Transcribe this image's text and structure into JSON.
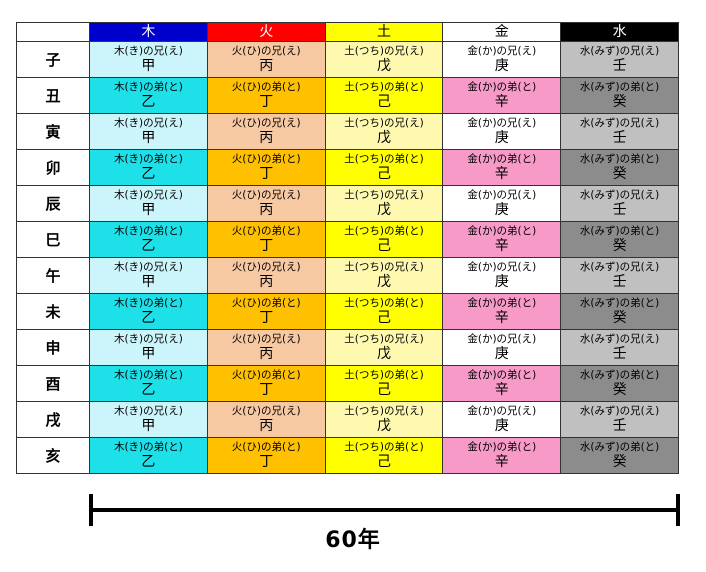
{
  "header": {
    "corner": "",
    "columns": [
      "木",
      "火",
      "土",
      "金",
      "水"
    ]
  },
  "rows": [
    {
      "branch": "子",
      "cells": [
        {
          "reading": "木(き)の兄(え)",
          "stem": "甲"
        },
        {
          "reading": "火(ひ)の兄(え)",
          "stem": "丙"
        },
        {
          "reading": "土(つち)の兄(え)",
          "stem": "戊"
        },
        {
          "reading": "金(か)の兄(え)",
          "stem": "庚"
        },
        {
          "reading": "水(みず)の兄(え)",
          "stem": "壬"
        }
      ]
    },
    {
      "branch": "丑",
      "cells": [
        {
          "reading": "木(き)の弟(と)",
          "stem": "乙"
        },
        {
          "reading": "火(ひ)の弟(と)",
          "stem": "丁"
        },
        {
          "reading": "土(つち)の弟(と)",
          "stem": "己"
        },
        {
          "reading": "金(か)の弟(と)",
          "stem": "辛"
        },
        {
          "reading": "水(みず)の弟(と)",
          "stem": "癸"
        }
      ]
    },
    {
      "branch": "寅",
      "cells": [
        {
          "reading": "木(き)の兄(え)",
          "stem": "甲"
        },
        {
          "reading": "火(ひ)の兄(え)",
          "stem": "丙"
        },
        {
          "reading": "土(つち)の兄(え)",
          "stem": "戊"
        },
        {
          "reading": "金(か)の兄(え)",
          "stem": "庚"
        },
        {
          "reading": "水(みず)の兄(え)",
          "stem": "壬"
        }
      ]
    },
    {
      "branch": "卯",
      "cells": [
        {
          "reading": "木(き)の弟(と)",
          "stem": "乙"
        },
        {
          "reading": "火(ひ)の弟(と)",
          "stem": "丁"
        },
        {
          "reading": "土(つち)の弟(と)",
          "stem": "己"
        },
        {
          "reading": "金(か)の弟(と)",
          "stem": "辛"
        },
        {
          "reading": "水(みず)の弟(と)",
          "stem": "癸"
        }
      ]
    },
    {
      "branch": "辰",
      "cells": [
        {
          "reading": "木(き)の兄(え)",
          "stem": "甲"
        },
        {
          "reading": "火(ひ)の兄(え)",
          "stem": "丙"
        },
        {
          "reading": "土(つち)の兄(え)",
          "stem": "戊"
        },
        {
          "reading": "金(か)の兄(え)",
          "stem": "庚"
        },
        {
          "reading": "水(みず)の兄(え)",
          "stem": "壬"
        }
      ]
    },
    {
      "branch": "巳",
      "cells": [
        {
          "reading": "木(き)の弟(と)",
          "stem": "乙"
        },
        {
          "reading": "火(ひ)の弟(と)",
          "stem": "丁"
        },
        {
          "reading": "土(つち)の弟(と)",
          "stem": "己"
        },
        {
          "reading": "金(か)の弟(と)",
          "stem": "辛"
        },
        {
          "reading": "水(みず)の弟(と)",
          "stem": "癸"
        }
      ]
    },
    {
      "branch": "午",
      "cells": [
        {
          "reading": "木(き)の兄(え)",
          "stem": "甲"
        },
        {
          "reading": "火(ひ)の兄(え)",
          "stem": "丙"
        },
        {
          "reading": "土(つち)の兄(え)",
          "stem": "戊"
        },
        {
          "reading": "金(か)の兄(え)",
          "stem": "庚"
        },
        {
          "reading": "水(みず)の兄(え)",
          "stem": "壬"
        }
      ]
    },
    {
      "branch": "未",
      "cells": [
        {
          "reading": "木(き)の弟(と)",
          "stem": "乙"
        },
        {
          "reading": "火(ひ)の弟(と)",
          "stem": "丁"
        },
        {
          "reading": "土(つち)の弟(と)",
          "stem": "己"
        },
        {
          "reading": "金(か)の弟(と)",
          "stem": "辛"
        },
        {
          "reading": "水(みず)の弟(と)",
          "stem": "癸"
        }
      ]
    },
    {
      "branch": "申",
      "cells": [
        {
          "reading": "木(き)の兄(え)",
          "stem": "甲"
        },
        {
          "reading": "火(ひ)の兄(え)",
          "stem": "丙"
        },
        {
          "reading": "土(つち)の兄(え)",
          "stem": "戊"
        },
        {
          "reading": "金(か)の兄(え)",
          "stem": "庚"
        },
        {
          "reading": "水(みず)の兄(え)",
          "stem": "壬"
        }
      ]
    },
    {
      "branch": "酉",
      "cells": [
        {
          "reading": "木(き)の弟(と)",
          "stem": "乙"
        },
        {
          "reading": "火(ひ)の弟(と)",
          "stem": "丁"
        },
        {
          "reading": "土(つち)の弟(と)",
          "stem": "己"
        },
        {
          "reading": "金(か)の弟(と)",
          "stem": "辛"
        },
        {
          "reading": "水(みず)の弟(と)",
          "stem": "癸"
        }
      ]
    },
    {
      "branch": "戌",
      "cells": [
        {
          "reading": "木(き)の兄(え)",
          "stem": "甲"
        },
        {
          "reading": "火(ひ)の兄(え)",
          "stem": "丙"
        },
        {
          "reading": "土(つち)の兄(え)",
          "stem": "戊"
        },
        {
          "reading": "金(か)の兄(え)",
          "stem": "庚"
        },
        {
          "reading": "水(みず)の兄(え)",
          "stem": "壬"
        }
      ]
    },
    {
      "branch": "亥",
      "cells": [
        {
          "reading": "木(き)の弟(と)",
          "stem": "乙"
        },
        {
          "reading": "火(ひ)の弟(と)",
          "stem": "丁"
        },
        {
          "reading": "土(つち)の弟(と)",
          "stem": "己"
        },
        {
          "reading": "金(か)の弟(と)",
          "stem": "辛"
        },
        {
          "reading": "水(みず)の弟(と)",
          "stem": "癸"
        }
      ]
    }
  ],
  "span": {
    "label": "60年"
  },
  "colors": {
    "wood_header": "#0000cc",
    "fire_header": "#ff0000",
    "earth_header": "#ffff00",
    "metal_header": "#ffffff",
    "water_header": "#000000"
  }
}
